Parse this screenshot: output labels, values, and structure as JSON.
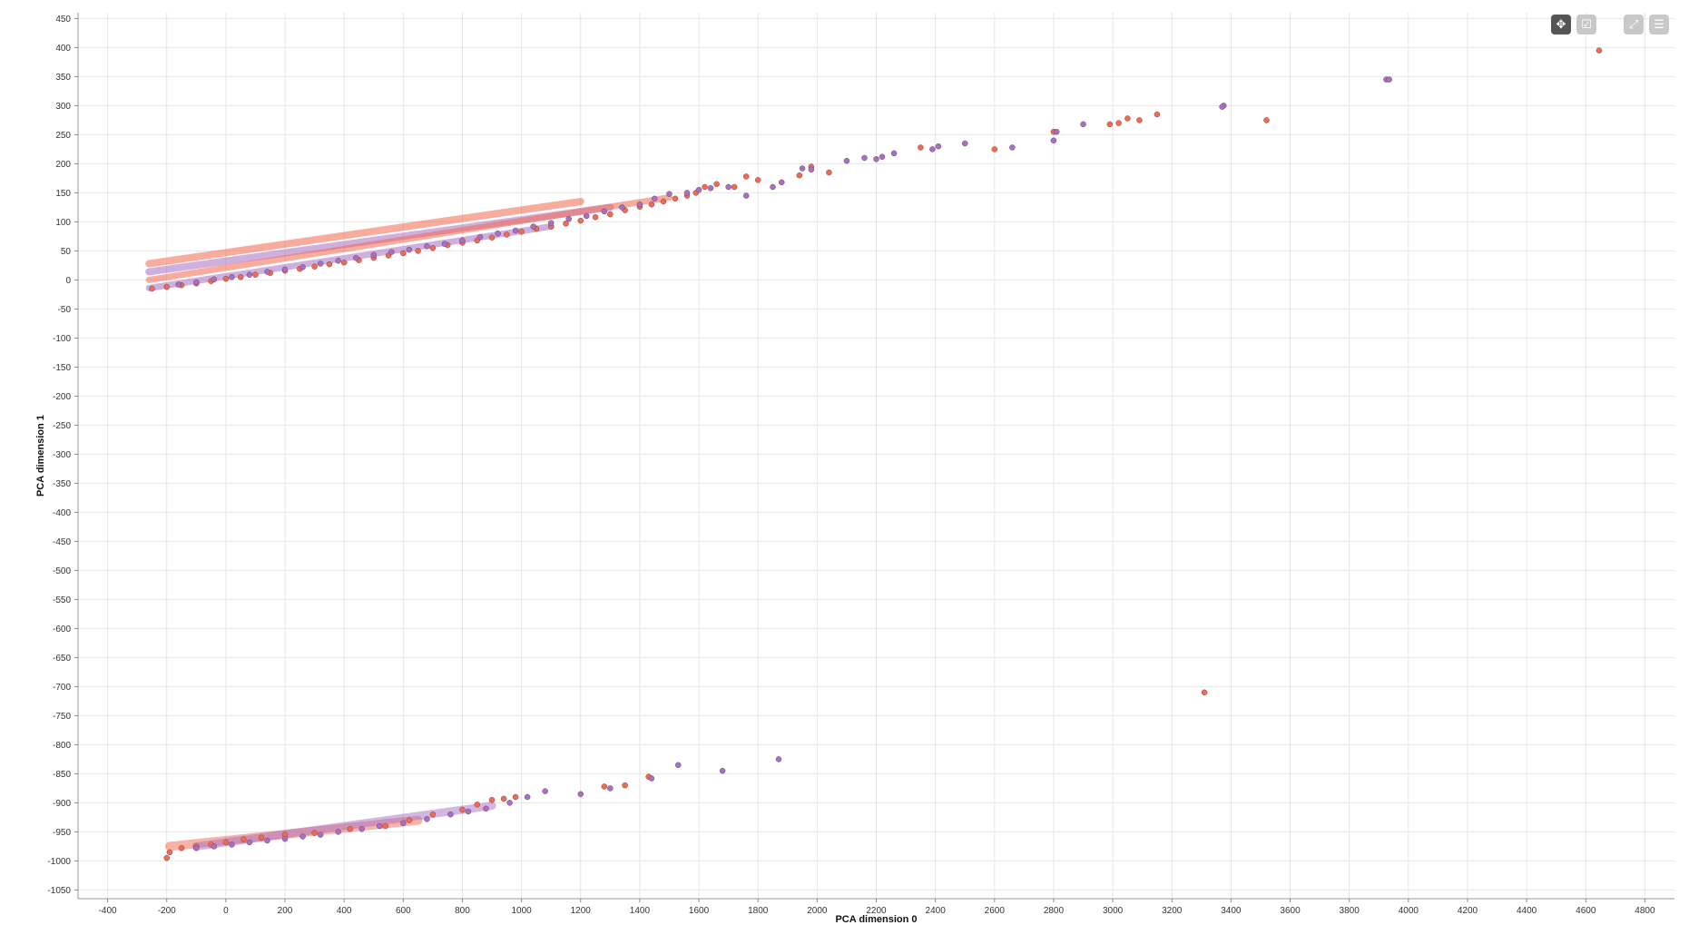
{
  "chart_data": {
    "type": "scatter",
    "title": "",
    "xlabel": "PCA dimension 0",
    "ylabel": "PCA dimension 1",
    "xlim": [
      -500,
      4900
    ],
    "ylim": [
      -1065,
      460
    ],
    "grid": true,
    "legend": "none",
    "x_ticks": [
      "-400",
      "-200",
      "0",
      "200",
      "400",
      "600",
      "800",
      "1000",
      "1200",
      "1400",
      "1600",
      "1800",
      "2000",
      "2200",
      "2400",
      "2600",
      "2800",
      "3000",
      "3200",
      "3400",
      "3600",
      "3800",
      "4000",
      "4200",
      "4400",
      "4600",
      "4800"
    ],
    "y_ticks": [
      "450",
      "400",
      "350",
      "300",
      "250",
      "200",
      "150",
      "100",
      "50",
      "0",
      "-50",
      "-100",
      "-150",
      "-200",
      "-250",
      "-300",
      "-350",
      "-400",
      "-450",
      "-500",
      "-550",
      "-600",
      "-650",
      "-700",
      "-750",
      "-800",
      "-850",
      "-900",
      "-950",
      "-1000",
      "-1050"
    ],
    "series": [
      {
        "color": "#f4694f",
        "points": [
          [
            4645,
            395
          ],
          [
            3520,
            275
          ],
          [
            3150,
            285
          ],
          [
            3090,
            275
          ],
          [
            3050,
            278
          ],
          [
            3020,
            270
          ],
          [
            2990,
            268
          ],
          [
            2800,
            255
          ],
          [
            2600,
            225
          ],
          [
            2350,
            228
          ],
          [
            1800,
            172
          ],
          [
            1760,
            178
          ],
          [
            1720,
            160
          ],
          [
            1660,
            165
          ],
          [
            1620,
            160
          ],
          [
            1590,
            150
          ],
          [
            1560,
            145
          ],
          [
            1520,
            140
          ],
          [
            1480,
            135
          ],
          [
            1440,
            130
          ],
          [
            1400,
            126
          ],
          [
            1350,
            120
          ],
          [
            1300,
            113
          ],
          [
            1250,
            108
          ],
          [
            1200,
            102
          ],
          [
            1150,
            97
          ],
          [
            1100,
            92
          ],
          [
            1050,
            88
          ],
          [
            1000,
            83
          ],
          [
            950,
            78
          ],
          [
            900,
            73
          ],
          [
            850,
            68
          ],
          [
            800,
            64
          ],
          [
            750,
            60
          ],
          [
            700,
            55
          ],
          [
            650,
            50
          ],
          [
            600,
            46
          ],
          [
            550,
            42
          ],
          [
            500,
            38
          ],
          [
            450,
            34
          ],
          [
            400,
            30
          ],
          [
            350,
            27
          ],
          [
            300,
            23
          ],
          [
            250,
            19
          ],
          [
            200,
            16
          ],
          [
            150,
            12
          ],
          [
            100,
            9
          ],
          [
            50,
            5
          ],
          [
            0,
            2
          ],
          [
            -50,
            -2
          ],
          [
            -100,
            -6
          ],
          [
            -150,
            -9
          ],
          [
            -200,
            -12
          ],
          [
            -250,
            -15
          ],
          [
            1940,
            180
          ],
          [
            1980,
            195
          ],
          [
            2040,
            185
          ],
          [
            3310,
            -710
          ],
          [
            1430,
            -855
          ],
          [
            1350,
            -870
          ],
          [
            1280,
            -872
          ],
          [
            980,
            -890
          ],
          [
            940,
            -893
          ],
          [
            900,
            -895
          ],
          [
            850,
            -903
          ],
          [
            800,
            -912
          ],
          [
            700,
            -920
          ],
          [
            620,
            -930
          ],
          [
            540,
            -940
          ],
          [
            420,
            -945
          ],
          [
            300,
            -952
          ],
          [
            200,
            -955
          ],
          [
            120,
            -960
          ],
          [
            60,
            -963
          ],
          [
            0,
            -968
          ],
          [
            -50,
            -972
          ],
          [
            -100,
            -975
          ],
          [
            -150,
            -978
          ],
          [
            -190,
            -985
          ],
          [
            -200,
            -995
          ]
        ]
      },
      {
        "color": "#a86fc4",
        "points": [
          [
            3925,
            345
          ],
          [
            3375,
            300
          ],
          [
            3370,
            298
          ],
          [
            2900,
            268
          ],
          [
            2810,
            255
          ],
          [
            2800,
            240
          ],
          [
            2660,
            228
          ],
          [
            2500,
            235
          ],
          [
            2410,
            230
          ],
          [
            2390,
            225
          ],
          [
            2260,
            218
          ],
          [
            2220,
            212
          ],
          [
            2200,
            208
          ],
          [
            2160,
            210
          ],
          [
            2100,
            205
          ],
          [
            1980,
            190
          ],
          [
            1950,
            192
          ],
          [
            1880,
            168
          ],
          [
            1850,
            160
          ],
          [
            1760,
            145
          ],
          [
            1700,
            160
          ],
          [
            1640,
            158
          ],
          [
            1600,
            155
          ],
          [
            1560,
            150
          ],
          [
            1500,
            148
          ],
          [
            1450,
            140
          ],
          [
            1400,
            130
          ],
          [
            1340,
            125
          ],
          [
            1280,
            118
          ],
          [
            1220,
            110
          ],
          [
            1160,
            105
          ],
          [
            1100,
            98
          ],
          [
            1040,
            92
          ],
          [
            980,
            85
          ],
          [
            920,
            80
          ],
          [
            860,
            74
          ],
          [
            800,
            68
          ],
          [
            740,
            62
          ],
          [
            680,
            58
          ],
          [
            620,
            52
          ],
          [
            560,
            48
          ],
          [
            500,
            43
          ],
          [
            440,
            38
          ],
          [
            380,
            33
          ],
          [
            320,
            28
          ],
          [
            260,
            22
          ],
          [
            200,
            18
          ],
          [
            140,
            14
          ],
          [
            80,
            9
          ],
          [
            20,
            5
          ],
          [
            -40,
            1
          ],
          [
            -100,
            -4
          ],
          [
            -160,
            -8
          ],
          [
            3935,
            345
          ],
          [
            1870,
            -825
          ],
          [
            1680,
            -845
          ],
          [
            1530,
            -835
          ],
          [
            1440,
            -858
          ],
          [
            1300,
            -875
          ],
          [
            1200,
            -885
          ],
          [
            1080,
            -880
          ],
          [
            1020,
            -890
          ],
          [
            960,
            -900
          ],
          [
            880,
            -910
          ],
          [
            820,
            -915
          ],
          [
            760,
            -920
          ],
          [
            680,
            -928
          ],
          [
            600,
            -935
          ],
          [
            520,
            -940
          ],
          [
            460,
            -945
          ],
          [
            380,
            -950
          ],
          [
            320,
            -955
          ],
          [
            260,
            -958
          ],
          [
            200,
            -962
          ],
          [
            140,
            -965
          ],
          [
            80,
            -968
          ],
          [
            20,
            -972
          ],
          [
            -40,
            -975
          ],
          [
            -100,
            -978
          ]
        ]
      }
    ]
  },
  "toolbar": {
    "pan_icon": "pan-icon",
    "select_icon": "box-select-icon",
    "fit_icon": "fit-view-icon",
    "menu_icon": "menu-icon",
    "pan_color": "#555555",
    "inactive_color": "#c8c8c8"
  }
}
